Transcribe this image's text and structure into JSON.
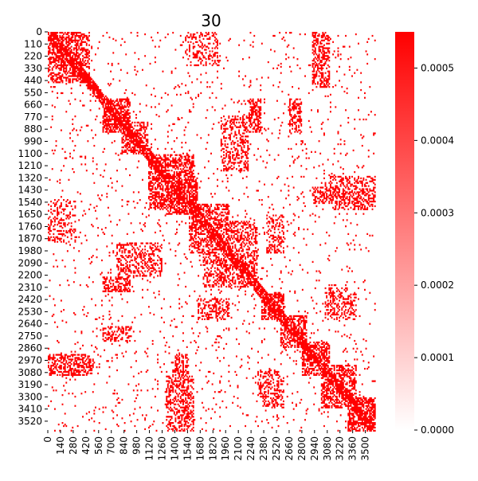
{
  "chart_data": {
    "type": "heatmap",
    "title": "30",
    "xlabel": "",
    "ylabel": "",
    "x_tick_labels": [
      "0",
      "140",
      "280",
      "420",
      "560",
      "700",
      "840",
      "980",
      "1120",
      "1260",
      "1400",
      "1540",
      "1680",
      "1820",
      "1960",
      "2100",
      "2240",
      "2380",
      "2520",
      "2660",
      "2800",
      "2940",
      "3080",
      "3220",
      "3360",
      "3500"
    ],
    "y_tick_labels": [
      "0",
      "110",
      "220",
      "330",
      "440",
      "550",
      "660",
      "770",
      "880",
      "990",
      "1100",
      "1210",
      "1320",
      "1430",
      "1540",
      "1650",
      "1760",
      "1870",
      "1980",
      "2090",
      "2200",
      "2310",
      "2420",
      "2530",
      "2640",
      "2750",
      "2860",
      "2970",
      "3080",
      "3190",
      "3300",
      "3410",
      "3520"
    ],
    "matrix_size": 3600,
    "value_range": [
      0.0,
      0.00055
    ],
    "colorbar": {
      "ticks": [
        "0.0000",
        "0.0001",
        "0.0002",
        "0.0003",
        "0.0004",
        "0.0005"
      ],
      "tick_values": [
        0.0,
        0.0001,
        0.0002,
        0.0003,
        0.0004,
        0.0005
      ],
      "colormap": [
        "#ffffff",
        "#ff0000"
      ]
    },
    "blocks": [
      [
        0,
        450,
        0,
        450,
        0.55
      ],
      [
        600,
        900,
        600,
        900,
        0.6
      ],
      [
        800,
        1100,
        800,
        1100,
        0.5
      ],
      [
        1100,
        1600,
        1100,
        1600,
        0.55
      ],
      [
        1300,
        1650,
        1300,
        1650,
        0.65
      ],
      [
        1550,
        2000,
        1550,
        2000,
        0.5
      ],
      [
        1700,
        2300,
        1700,
        2300,
        0.45
      ],
      [
        2350,
        2600,
        2350,
        2600,
        0.6
      ],
      [
        2550,
        2850,
        2550,
        2850,
        0.55
      ],
      [
        2800,
        3100,
        2800,
        3100,
        0.5
      ],
      [
        3000,
        3400,
        3000,
        3400,
        0.55
      ],
      [
        3300,
        3600,
        3300,
        3600,
        0.6
      ],
      [
        600,
        900,
        2200,
        2350,
        0.55
      ],
      [
        2200,
        2350,
        600,
        900,
        0.55
      ],
      [
        0,
        450,
        2900,
        3050,
        0.5
      ],
      [
        2900,
        3050,
        0,
        450,
        0.5
      ],
      [
        600,
        900,
        2650,
        2800,
        0.45
      ],
      [
        2650,
        2800,
        600,
        900,
        0.45
      ],
      [
        2950,
        3100,
        0,
        500,
        0.5
      ],
      [
        0,
        500,
        2950,
        3100,
        0.5
      ],
      [
        1400,
        1550,
        2900,
        3600,
        0.45
      ],
      [
        2900,
        3600,
        1400,
        1550,
        0.45
      ],
      [
        1650,
        2000,
        2400,
        2600,
        0.4
      ],
      [
        2400,
        2600,
        1650,
        2000,
        0.4
      ],
      [
        3100,
        3600,
        1300,
        1600,
        0.4
      ],
      [
        1300,
        1600,
        3100,
        3600,
        0.4
      ],
      [
        2300,
        2550,
        3050,
        3300,
        0.4
      ],
      [
        3050,
        3300,
        2300,
        2550,
        0.4
      ],
      [
        1900,
        2200,
        750,
        1250,
        0.35
      ],
      [
        750,
        1250,
        1900,
        2200,
        0.35
      ],
      [
        0,
        300,
        1500,
        1900,
        0.3
      ],
      [
        1500,
        1900,
        0,
        300,
        0.3
      ],
      [
        3100,
        3400,
        2350,
        2600,
        0.35
      ],
      [
        2350,
        2600,
        3100,
        3400,
        0.35
      ],
      [
        1350,
        1550,
        3050,
        3600,
        0.4
      ],
      [
        3050,
        3600,
        1350,
        1550,
        0.4
      ]
    ]
  }
}
